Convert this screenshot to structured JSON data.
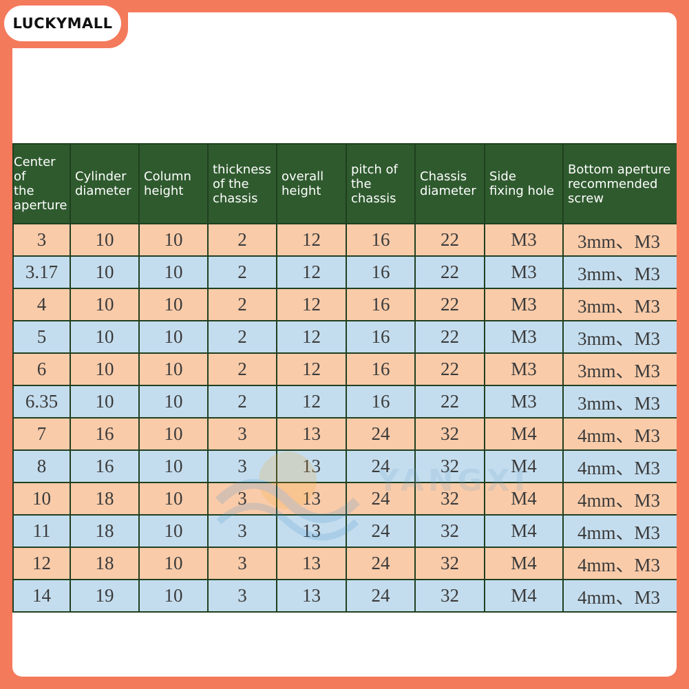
{
  "brand": {
    "name": "LUCKYMALL"
  },
  "watermark": {
    "text": "YANGXI",
    "icon": "sun-wave-logo-icon"
  },
  "colors": {
    "frame": "#f47a5c",
    "header_bg": "#2f5a2e",
    "row_peach": "#f9cba9",
    "row_blue": "#c4ddee"
  },
  "table": {
    "headers": [
      "Center of\nthe\naperture",
      "Cylinder\ndiameter",
      "Column\nheight",
      "thickness\nof the\nchassis",
      "overall\nheight",
      "pitch of\nthe\nchassis",
      "Chassis\ndiameter",
      "Side\nfixing hole",
      "Bottom aperture\nrecommended\nscrew"
    ],
    "rows": [
      [
        "3",
        "10",
        "10",
        "2",
        "12",
        "16",
        "22",
        "M3",
        "3mm、M3"
      ],
      [
        "3.17",
        "10",
        "10",
        "2",
        "12",
        "16",
        "22",
        "M3",
        "3mm、M3"
      ],
      [
        "4",
        "10",
        "10",
        "2",
        "12",
        "16",
        "22",
        "M3",
        "3mm、M3"
      ],
      [
        "5",
        "10",
        "10",
        "2",
        "12",
        "16",
        "22",
        "M3",
        "3mm、M3"
      ],
      [
        "6",
        "10",
        "10",
        "2",
        "12",
        "16",
        "22",
        "M3",
        "3mm、M3"
      ],
      [
        "6.35",
        "10",
        "10",
        "2",
        "12",
        "16",
        "22",
        "M3",
        "3mm、M3"
      ],
      [
        "7",
        "16",
        "10",
        "3",
        "13",
        "24",
        "32",
        "M4",
        "4mm、M3"
      ],
      [
        "8",
        "16",
        "10",
        "3",
        "13",
        "24",
        "32",
        "M4",
        "4mm、M3"
      ],
      [
        "10",
        "18",
        "10",
        "3",
        "13",
        "24",
        "32",
        "M4",
        "4mm、M3"
      ],
      [
        "11",
        "18",
        "10",
        "3",
        "13",
        "24",
        "32",
        "M4",
        "4mm、M3"
      ],
      [
        "12",
        "18",
        "10",
        "3",
        "13",
        "24",
        "32",
        "M4",
        "4mm、M3"
      ],
      [
        "14",
        "19",
        "10",
        "3",
        "13",
        "24",
        "32",
        "M4",
        "4mm、M3"
      ]
    ]
  }
}
